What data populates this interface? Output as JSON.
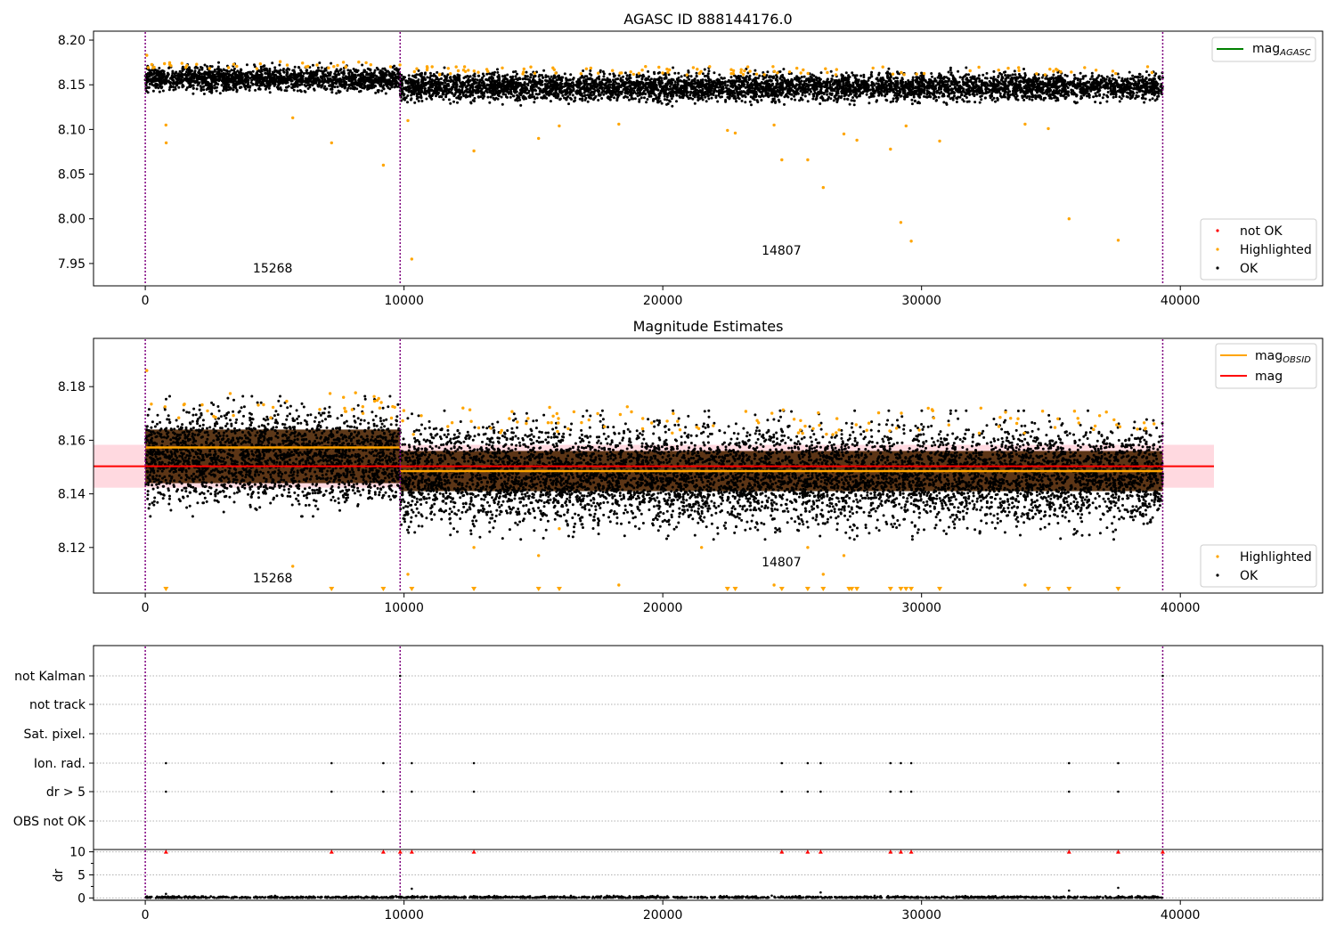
{
  "colors": {
    "ok": "#000000",
    "highlighted": "#ffa500",
    "not_ok": "#ff0000",
    "mag_agasc": "#008000",
    "mag_obsid": "#ffa500",
    "mag": "#ff0000",
    "mag_band": "#ffc0cb",
    "obs_boundary": "#800080",
    "grid": "#b0b0b0"
  },
  "chart_data": [
    {
      "type": "scatter",
      "title": "AGASC ID 888144176.0",
      "xlim": [
        -2000,
        45500
      ],
      "ylim": [
        7.925,
        8.21
      ],
      "x_ticks": [
        0,
        10000,
        20000,
        30000,
        40000
      ],
      "y_ticks": [
        7.95,
        8.0,
        8.05,
        8.1,
        8.15,
        8.2
      ],
      "y_tick_labels": [
        "7.95",
        "8.00",
        "8.05",
        "8.10",
        "8.15",
        "8.20"
      ],
      "obs_boundaries": [
        0,
        9850,
        39320
      ],
      "obs_labels": [
        {
          "text": "15268",
          "x": 4925,
          "y": 7.94
        },
        {
          "text": "14807",
          "x": 24585,
          "y": 7.96
        }
      ],
      "ok_band": [
        {
          "x_start": 0,
          "x_end": 9850,
          "y_low": 8.145,
          "y_high": 8.168
        },
        {
          "x_start": 9850,
          "x_end": 39320,
          "y_low": 8.134,
          "y_high": 8.161
        }
      ],
      "highlighted_points": [
        [
          60,
          8.183
        ],
        [
          800,
          8.105
        ],
        [
          810,
          8.085
        ],
        [
          5700,
          8.113
        ],
        [
          7200,
          8.085
        ],
        [
          9200,
          8.06
        ],
        [
          10150,
          8.11
        ],
        [
          10300,
          7.955
        ],
        [
          12700,
          8.076
        ],
        [
          15200,
          8.09
        ],
        [
          16000,
          8.104
        ],
        [
          18300,
          8.106
        ],
        [
          22500,
          8.099
        ],
        [
          22800,
          8.096
        ],
        [
          24300,
          8.105
        ],
        [
          24600,
          8.066
        ],
        [
          25600,
          8.066
        ],
        [
          26200,
          8.035
        ],
        [
          27000,
          8.095
        ],
        [
          27500,
          8.088
        ],
        [
          28800,
          8.078
        ],
        [
          29200,
          7.996
        ],
        [
          29400,
          8.104
        ],
        [
          29600,
          7.975
        ],
        [
          30700,
          8.087
        ],
        [
          34000,
          8.106
        ],
        [
          34900,
          8.101
        ],
        [
          35700,
          8.0
        ],
        [
          37600,
          7.976
        ]
      ],
      "legend_lines": [
        {
          "label_main": "mag",
          "label_sub": "AGASC",
          "color": "#008000"
        }
      ],
      "legend_points": [
        {
          "label": "not OK",
          "color": "#ff0000"
        },
        {
          "label": "Highlighted",
          "color": "#ffa500"
        },
        {
          "label": "OK",
          "color": "#000000"
        }
      ]
    },
    {
      "type": "scatter",
      "title": "Magnitude Estimates",
      "xlim": [
        -2000,
        45500
      ],
      "ylim": [
        8.103,
        8.198
      ],
      "x_ticks": [
        0,
        10000,
        20000,
        30000,
        40000
      ],
      "y_ticks": [
        8.12,
        8.14,
        8.16,
        8.18
      ],
      "y_tick_labels": [
        "8.12",
        "8.14",
        "8.16",
        "8.18"
      ],
      "obs_boundaries": [
        0,
        9850,
        39320
      ],
      "obs_labels": [
        {
          "text": "15268",
          "x": 4925,
          "y": 8.107
        },
        {
          "text": "14807",
          "x": 24585,
          "y": 8.113
        }
      ],
      "mag": 8.1503,
      "mag_band": [
        8.1423,
        8.1583
      ],
      "mag_band_x": [
        -2000,
        41300
      ],
      "mag_obsid": [
        {
          "x_start": 0,
          "x_end": 9850,
          "value": 8.1573,
          "band_low": 8.144,
          "band_high": 8.164
        },
        {
          "x_start": 9850,
          "x_end": 39320,
          "value": 8.1485,
          "band_low": 8.141,
          "band_high": 8.156
        }
      ],
      "ok_band": [
        {
          "x_start": 0,
          "x_end": 9850,
          "y_low": 8.14,
          "y_high": 8.168
        },
        {
          "x_start": 9850,
          "x_end": 39320,
          "y_low": 8.132,
          "y_high": 8.162
        }
      ],
      "highlighted_points": [
        [
          60,
          8.186
        ],
        [
          5700,
          8.113
        ],
        [
          10150,
          8.11
        ],
        [
          12700,
          8.12
        ],
        [
          15200,
          8.117
        ],
        [
          16000,
          8.127
        ],
        [
          18300,
          8.106
        ],
        [
          21500,
          8.12
        ],
        [
          24300,
          8.106
        ],
        [
          25600,
          8.12
        ],
        [
          26200,
          8.11
        ],
        [
          27000,
          8.117
        ],
        [
          34000,
          8.106
        ]
      ],
      "below_range_markers": [
        800,
        7200,
        9200,
        10300,
        12700,
        15200,
        16000,
        22500,
        22800,
        24600,
        25600,
        26200,
        27200,
        27300,
        27500,
        28800,
        29200,
        29400,
        29600,
        30700,
        34900,
        35700,
        37600
      ],
      "legend_lines": [
        {
          "label_main": "mag",
          "label_sub": "OBSID",
          "color": "#ffa500"
        },
        {
          "label_main": "mag",
          "label_sub": "",
          "color": "#ff0000"
        }
      ],
      "legend_points": [
        {
          "label": "Highlighted",
          "color": "#ffa500"
        },
        {
          "label": "OK",
          "color": "#000000"
        }
      ]
    },
    {
      "type": "scatter",
      "title": "",
      "xlim": [
        -2000,
        45500
      ],
      "x_ticks": [
        0,
        10000,
        20000,
        30000,
        40000
      ],
      "obs_boundaries": [
        0,
        9850,
        39320
      ],
      "flag_categories": [
        "not Kalman",
        "not track",
        "Sat. pixel.",
        "Ion. rad.",
        "dr > 5",
        "OBS not OK"
      ],
      "flag_points": {
        "not Kalman": [
          9850,
          39320
        ],
        "not track": [],
        "Sat. pixel.": [],
        "Ion. rad.": [
          800,
          7200,
          9200,
          10300,
          12700,
          24600,
          25600,
          26100,
          28800,
          29200,
          29600,
          35700,
          37600
        ],
        "dr > 5": [
          800,
          7200,
          9200,
          10300,
          12700,
          24600,
          25600,
          26100,
          28800,
          29200,
          29600,
          35700,
          37600
        ],
        "OBS not OK": []
      },
      "dr_ylabel": "dr",
      "dr_ylim": [
        -0.5,
        10.5
      ],
      "dr_ticks": [
        0,
        5,
        10
      ],
      "dr_clipped_markers": [
        800,
        7200,
        9200,
        9850,
        10300,
        12700,
        24600,
        25600,
        26100,
        28800,
        29200,
        29600,
        35700,
        37600,
        39320
      ],
      "dr_outliers": [
        [
          10300,
          2.0
        ],
        [
          26100,
          1.2
        ],
        [
          35700,
          1.6
        ],
        [
          37600,
          2.2
        ],
        [
          800,
          0.9
        ]
      ]
    }
  ]
}
